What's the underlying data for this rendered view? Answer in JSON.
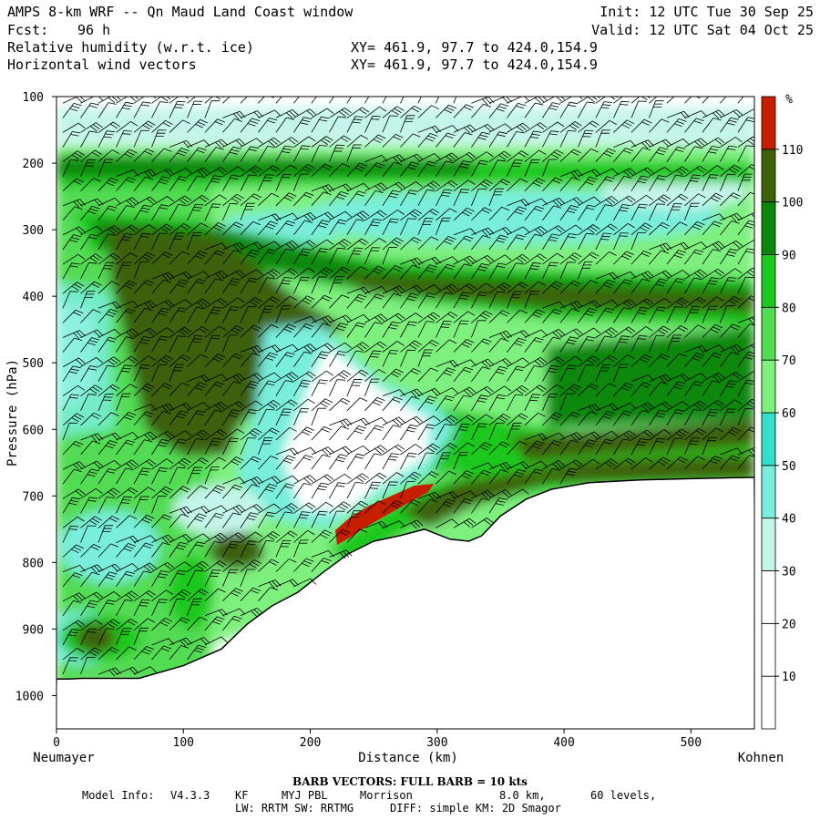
{
  "header": {
    "title": "AMPS 8-km WRF -- Qn Maud Land Coast window",
    "forecast_label": "Fcst:",
    "forecast_hours": "96 h",
    "field1": "Relative humidity (w.r.t. ice)",
    "field2": "Horizontal wind vectors",
    "xy1": "XY= 461.9, 97.7 to 424.0,154.9",
    "xy2": "XY= 461.9, 97.7 to 424.0,154.9",
    "init": "Init: 12 UTC Tue 30 Sep 25",
    "valid": "Valid: 12 UTC Sat 04 Oct 25"
  },
  "chart_data": {
    "type": "cross-section (filled contour + wind barbs)",
    "title": "Relative humidity (w.r.t. ice) and horizontal wind vectors",
    "xlabel": "Distance (km)",
    "ylabel": "Pressure (hPa)",
    "xlim": [
      0,
      550
    ],
    "ylim": [
      1050,
      100
    ],
    "x_ticks": [
      0,
      100,
      200,
      300,
      400,
      500
    ],
    "y_ticks": [
      100,
      200,
      300,
      400,
      500,
      600,
      700,
      800,
      900,
      1000
    ],
    "left_endpoint": "Neumayer",
    "right_endpoint": "Kohnen",
    "colorbar": {
      "unit": "%",
      "levels": [
        10,
        20,
        30,
        40,
        50,
        60,
        70,
        80,
        90,
        100,
        110
      ],
      "colors": [
        "#ffffff",
        "#ffffff",
        "#ffffff",
        "#c4f5ea",
        "#79eedc",
        "#34e0cc",
        "#7ef07e",
        "#52dc52",
        "#1ec81e",
        "#0a880a",
        "#3e6008",
        "#c81e00"
      ]
    },
    "terrain_surface_hpa": [
      [
        0,
        975
      ],
      [
        10,
        975
      ],
      [
        20,
        974
      ],
      [
        40,
        974
      ],
      [
        65,
        974
      ],
      [
        100,
        955
      ],
      [
        130,
        930
      ],
      [
        150,
        893
      ],
      [
        170,
        865
      ],
      [
        190,
        845
      ],
      [
        210,
        815
      ],
      [
        230,
        787
      ],
      [
        250,
        768
      ],
      [
        270,
        760
      ],
      [
        290,
        750
      ],
      [
        310,
        765
      ],
      [
        325,
        768
      ],
      [
        335,
        760
      ],
      [
        350,
        730
      ],
      [
        370,
        705
      ],
      [
        390,
        690
      ],
      [
        420,
        680
      ],
      [
        460,
        676
      ],
      [
        500,
        674
      ],
      [
        550,
        672
      ]
    ],
    "rh_regions": [
      {
        "desc": "upper dry layer",
        "rh_percent": "10-40",
        "pressure_hpa": "100-160"
      },
      {
        "desc": "moist band",
        "rh_percent": "90-110",
        "pressure_hpa": "160-230"
      },
      {
        "desc": "moist band sloping",
        "rh_percent": "90-110",
        "pressure_hpa": "280-640"
      },
      {
        "desc": "dry pocket",
        "rh_percent": "<30",
        "pressure_hpa": "450-730",
        "distance_km": "220-330"
      },
      {
        "desc": "supersaturated strip",
        "rh_percent": ">110",
        "pressure_hpa": "690-800",
        "distance_km": "210-300"
      }
    ],
    "barb_note": "BARB VECTORS:  FULL BARB = 10 kts"
  },
  "footer": {
    "barb_vectors": "BARB VECTORS:  FULL BARB = 10 kts",
    "model_info_label": "Model Info:",
    "model_version": "V4.3.3",
    "cumulus": "KF",
    "pbl": "MYJ PBL",
    "microphysics": "Morrison",
    "resolution": "8.0 km,",
    "levels": "60 levels,",
    "radiation": "LW: RRTM SW: RRTMG",
    "diffusion": "DIFF: simple KM: 2D Smagor"
  }
}
